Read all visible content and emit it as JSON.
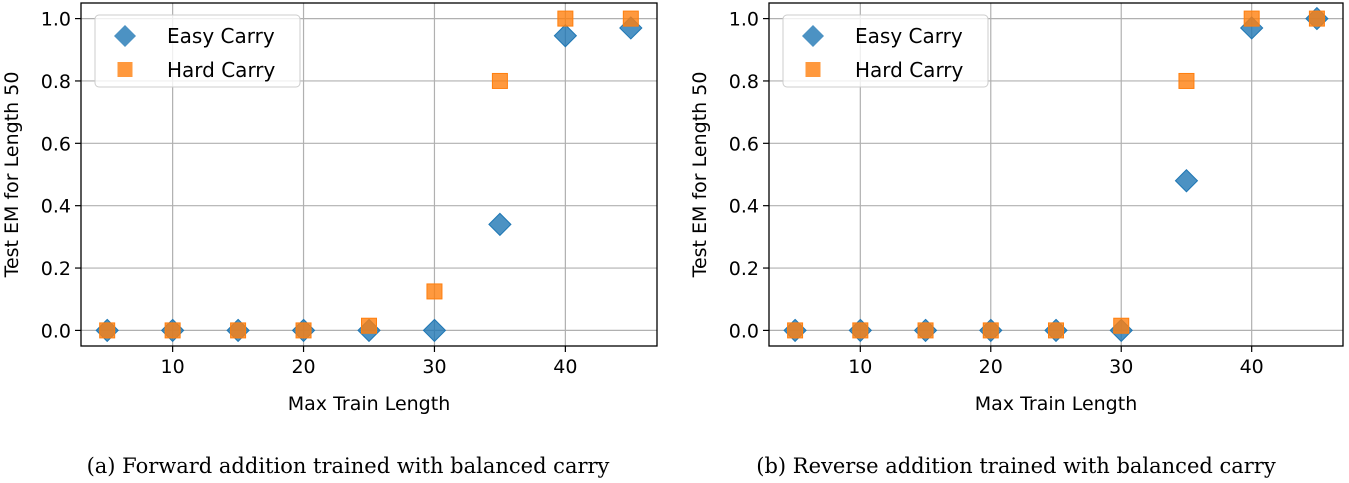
{
  "colors": {
    "easy": "#1f77b4",
    "hard": "#ff7f0e"
  },
  "chart_data": [
    {
      "type": "scatter",
      "caption": "(a) Forward addition trained with balanced carry",
      "xlabel": "Max Train Length",
      "ylabel": "Test EM for Length 50",
      "xlim": [
        3,
        47
      ],
      "ylim": [
        -0.05,
        1.05
      ],
      "xticks": [
        10,
        20,
        30,
        40
      ],
      "yticks": [
        0.0,
        0.2,
        0.4,
        0.6,
        0.8,
        1.0
      ],
      "xtick_labels": [
        "10",
        "20",
        "30",
        "40"
      ],
      "ytick_labels": [
        "0.0",
        "0.2",
        "0.4",
        "0.6",
        "0.8",
        "1.0"
      ],
      "grid": true,
      "legend": "top-left",
      "x": [
        5,
        10,
        15,
        20,
        25,
        30,
        35,
        40,
        45
      ],
      "series": [
        {
          "name": "Easy Carry",
          "marker": "diamond",
          "values": [
            0,
            0,
            0,
            0,
            0,
            0,
            0.34,
            0.945,
            0.97
          ]
        },
        {
          "name": "Hard Carry",
          "marker": "square",
          "values": [
            0,
            0,
            0,
            0,
            0.015,
            0.125,
            0.8,
            1.0,
            1.0
          ]
        }
      ]
    },
    {
      "type": "scatter",
      "caption": "(b) Reverse addition trained with balanced carry",
      "xlabel": "Max Train Length",
      "ylabel": "Test EM for Length 50",
      "xlim": [
        3,
        47
      ],
      "ylim": [
        -0.05,
        1.05
      ],
      "xticks": [
        10,
        20,
        30,
        40
      ],
      "yticks": [
        0.0,
        0.2,
        0.4,
        0.6,
        0.8,
        1.0
      ],
      "xtick_labels": [
        "10",
        "20",
        "30",
        "40"
      ],
      "ytick_labels": [
        "0.0",
        "0.2",
        "0.4",
        "0.6",
        "0.8",
        "1.0"
      ],
      "grid": true,
      "legend": "top-left",
      "x": [
        5,
        10,
        15,
        20,
        25,
        30,
        35,
        40,
        45
      ],
      "series": [
        {
          "name": "Easy Carry",
          "marker": "diamond",
          "values": [
            0,
            0,
            0,
            0,
            0,
            0,
            0.48,
            0.97,
            1.0
          ]
        },
        {
          "name": "Hard Carry",
          "marker": "square",
          "values": [
            0,
            0,
            0,
            0,
            0,
            0.015,
            0.8,
            1.0,
            1.0
          ]
        }
      ]
    }
  ]
}
